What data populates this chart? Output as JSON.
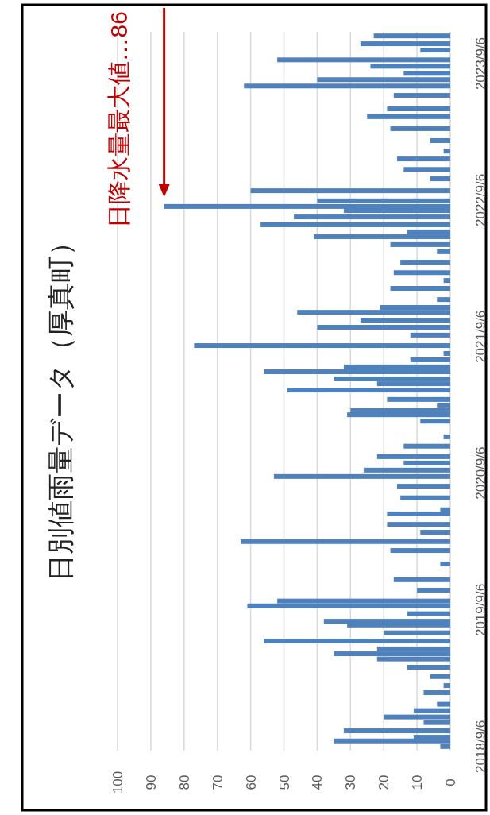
{
  "chart_data": {
    "type": "bar",
    "orientation": "horizontal",
    "title": "日別値雨量データ（厚真町）",
    "color": "#4f81bd",
    "x": [
      "2018-09-06",
      "2018-09-21",
      "2018-10-01",
      "2018-10-18",
      "2018-11-09",
      "2018-11-24",
      "2018-12-11",
      "2018-12-28",
      "2019-01-28",
      "2019-02-16",
      "2019-03-12",
      "2019-04-06",
      "2019-04-28",
      "2019-05-12",
      "2019-05-25",
      "2019-06-15",
      "2019-07-07",
      "2019-07-28",
      "2019-08-07",
      "2019-08-27",
      "2019-09-17",
      "2019-09-30",
      "2019-10-29",
      "2019-11-26",
      "2020-01-07",
      "2020-02-12",
      "2020-03-07",
      "2020-04-01",
      "2020-04-22",
      "2020-05-20",
      "2020-05-31",
      "2020-07-02",
      "2020-08-02",
      "2020-08-28",
      "2020-09-14",
      "2020-10-03",
      "2020-10-20",
      "2020-11-17",
      "2020-12-12",
      "2021-01-23",
      "2021-02-09",
      "2021-02-20",
      "2021-03-07",
      "2021-03-22",
      "2021-04-16",
      "2021-05-03",
      "2021-05-16",
      "2021-06-04",
      "2021-06-17",
      "2021-07-06",
      "2021-07-23",
      "2021-08-13",
      "2021-09-10",
      "2021-10-01",
      "2021-10-20",
      "2021-11-10",
      "2021-11-23",
      "2021-12-14",
      "2022-01-13",
      "2022-02-03",
      "2022-02-24",
      "2022-03-24",
      "2022-04-21",
      "2022-05-10",
      "2022-05-31",
      "2022-06-13",
      "2022-07-02",
      "2022-07-23",
      "2022-08-09",
      "2022-08-20",
      "2022-09-04",
      "2022-10-01",
      "2022-11-02",
      "2022-11-27",
      "2022-12-25",
      "2023-01-15",
      "2023-02-12",
      "2023-03-16",
      "2023-04-17",
      "2023-05-08",
      "2023-06-13",
      "2023-07-08",
      "2023-07-25",
      "2023-08-11",
      "2023-08-30",
      "2023-09-16",
      "2023-10-12",
      "2023-10-29",
      "2023-11-19"
    ],
    "values": [
      3,
      35,
      11,
      32,
      8,
      20,
      11,
      4,
      8,
      2,
      6,
      13,
      22,
      35,
      22,
      56,
      20,
      31,
      38,
      13,
      61,
      52,
      10,
      17,
      3,
      18,
      63,
      9,
      19,
      19,
      3,
      15,
      16,
      53,
      26,
      14,
      22,
      14,
      2,
      9,
      31,
      30,
      4,
      19,
      49,
      22,
      35,
      56,
      32,
      12,
      2,
      77,
      12,
      40,
      27,
      46,
      21,
      4,
      18,
      2,
      17,
      15,
      4,
      18,
      41,
      13,
      57,
      47,
      32,
      86,
      40,
      60,
      6,
      14,
      16,
      2,
      6,
      18,
      25,
      19,
      17,
      62,
      40,
      14,
      24,
      52,
      9,
      27,
      23
    ],
    "xlim": [
      100,
      0
    ],
    "xticks": [
      0,
      10,
      20,
      30,
      40,
      50,
      60,
      70,
      80,
      90,
      100
    ],
    "ylim": [
      "2018-08-26",
      "2023-11-30"
    ],
    "yticks": [
      {
        "value": "2018-09-06",
        "label": "2018/9/6"
      },
      {
        "value": "2019-09-06",
        "label": "2019/9/6"
      },
      {
        "value": "2020-09-06",
        "label": "2020/9/6"
      },
      {
        "value": "2021-09-06",
        "label": "2021/9/6"
      },
      {
        "value": "2022-09-06",
        "label": "2022/9/6"
      },
      {
        "value": "2023-09-06",
        "label": "2023/9/6"
      }
    ],
    "grid": "x",
    "annotations": [
      {
        "text": "日降水量最大値…86",
        "x": 86,
        "y": "2022-08-20"
      }
    ]
  }
}
